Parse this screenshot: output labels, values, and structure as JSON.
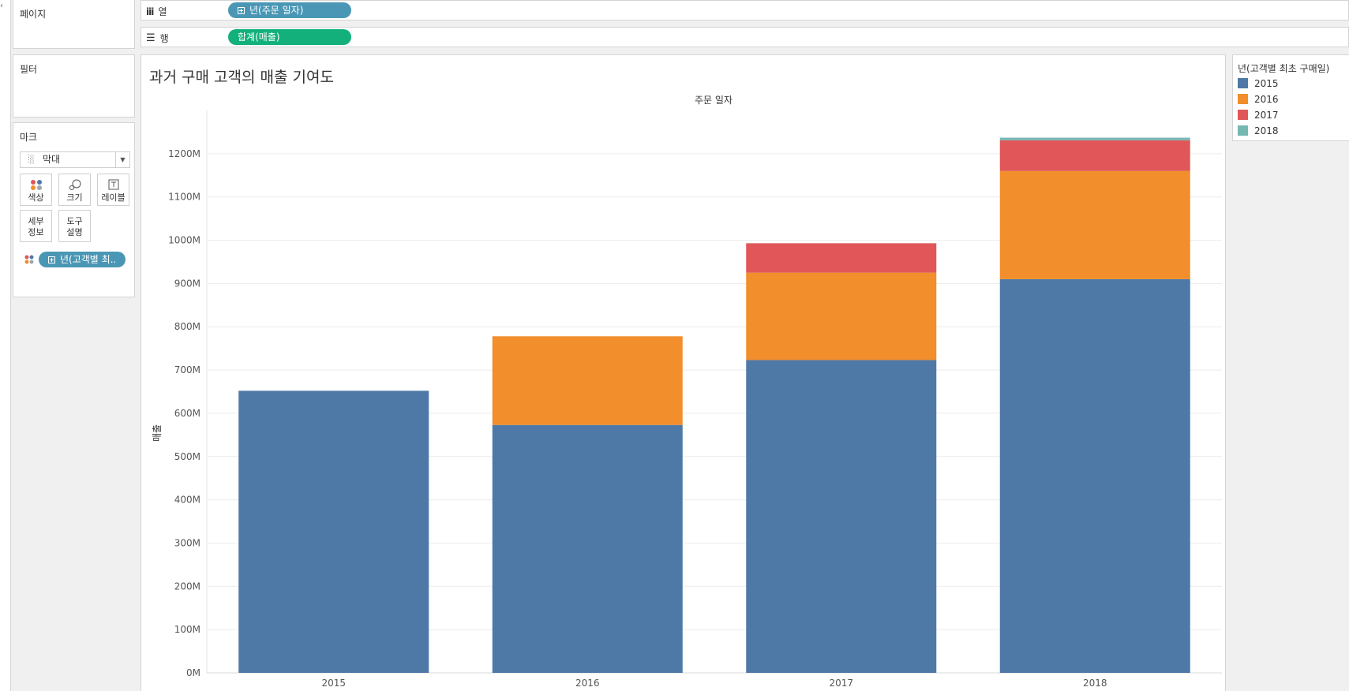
{
  "pages_panel": {
    "title": "페이지"
  },
  "shelves": {
    "columns": {
      "label": "열",
      "pill": "년(주문 일자)"
    },
    "rows": {
      "label": "행",
      "pill": "합계(매출)"
    }
  },
  "filters_panel": {
    "title": "필터"
  },
  "marks_panel": {
    "title": "마크",
    "type_select": "막대",
    "buttons": {
      "color": "색상",
      "size": "크기",
      "label": "레이블",
      "detail_line1": "세부",
      "detail_line2": "정보",
      "tooltip_line1": "도구",
      "tooltip_line2": "설명"
    },
    "color_pill": "년(고객별 최.."
  },
  "legend": {
    "title": "년(고객별 최초 구매일)",
    "items": [
      {
        "label": "2015",
        "color": "#4e79a7"
      },
      {
        "label": "2016",
        "color": "#f28e2b"
      },
      {
        "label": "2017",
        "color": "#e15759"
      },
      {
        "label": "2018",
        "color": "#76b7b2"
      }
    ]
  },
  "chart_data": {
    "type": "bar",
    "stacked": true,
    "title": "과거 구매 고객의 매출 기여도",
    "xlabel": "주문 일자",
    "ylabel": "매출",
    "categories": [
      "2015",
      "2016",
      "2017",
      "2018"
    ],
    "series": [
      {
        "name": "2015",
        "color": "#4e79a7",
        "values": [
          652,
          573,
          723,
          910
        ]
      },
      {
        "name": "2016",
        "color": "#f28e2b",
        "values": [
          0,
          205,
          202,
          250
        ]
      },
      {
        "name": "2017",
        "color": "#e15759",
        "values": [
          0,
          0,
          68,
          71
        ]
      },
      {
        "name": "2018",
        "color": "#76b7b2",
        "values": [
          0,
          0,
          0,
          6
        ]
      }
    ],
    "yticks": [
      {
        "v": 0,
        "label": "0M"
      },
      {
        "v": 100,
        "label": "100M"
      },
      {
        "v": 200,
        "label": "200M"
      },
      {
        "v": 300,
        "label": "300M"
      },
      {
        "v": 400,
        "label": "400M"
      },
      {
        "v": 500,
        "label": "500M"
      },
      {
        "v": 600,
        "label": "600M"
      },
      {
        "v": 700,
        "label": "700M"
      },
      {
        "v": 800,
        "label": "800M"
      },
      {
        "v": 900,
        "label": "900M"
      },
      {
        "v": 1000,
        "label": "1000M"
      },
      {
        "v": 1100,
        "label": "1100M"
      },
      {
        "v": 1200,
        "label": "1200M"
      }
    ],
    "ylim": [
      0,
      1300
    ],
    "grid": true,
    "legend_position": "right"
  }
}
